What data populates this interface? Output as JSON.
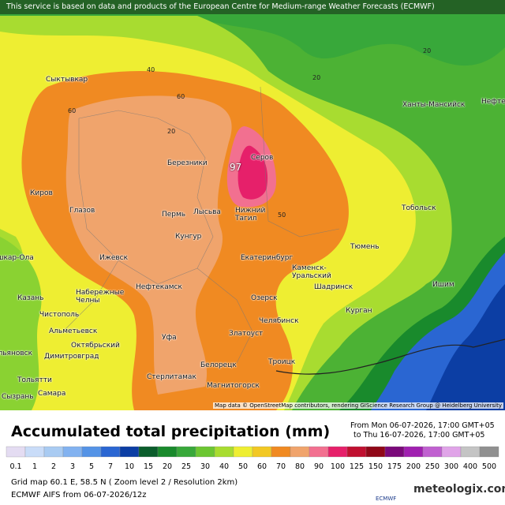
{
  "banner": "This service is based on data and products of the European Centre for Medium-range Weather Forecasts (ECMWF)",
  "map": {
    "cities": [
      "Сыктывкар",
      "Киров",
      "Глазов",
      "Березники",
      "Пермь",
      "Лысьва",
      "Кунгур",
      "Ижевск",
      "Нефтекамск",
      "Набережные Челны",
      "Казань",
      "Чистополь",
      "Альметьевск",
      "Октябрьский",
      "Йошкар-Ола",
      "Ульяновск",
      "Димитровград",
      "Тольятти",
      "Самара",
      "Сызрань",
      "Уфа",
      "Стерлитамак",
      "Белорецк",
      "Магнитогорск",
      "Златоуст",
      "Челябинск",
      "Озерск",
      "Троицк",
      "Екатеринбург",
      "Нижний Тагил",
      "Серов",
      "Каменск-Уральский",
      "Шадринск",
      "Курган",
      "Тюмень",
      "Тобольск",
      "Ишим",
      "Ханты-Мансийск",
      "Нефтеюганск"
    ],
    "contour_labels": [
      20,
      20,
      20,
      40,
      60,
      60,
      50
    ],
    "max_label": 97,
    "attribution": "Map data © OpenStreetMap contributors, rendering GIScience Research Group @ Heidelberg University"
  },
  "legend": {
    "title": "Accumulated total precipitation (mm)",
    "from": "From Mon 06-07-2026, 17:00 GMT+05",
    "to": "to Thu 16-07-2026, 17:00 GMT+05",
    "levels": [
      0.1,
      1,
      2,
      3,
      5,
      7,
      10,
      15,
      20,
      25,
      30,
      40,
      50,
      60,
      70,
      80,
      90,
      100,
      125,
      150,
      175,
      200,
      250,
      300,
      400,
      500
    ],
    "colors": [
      "#e4dcf2",
      "#c9dcf8",
      "#a9cbf2",
      "#82b2f0",
      "#5493e6",
      "#2a66d2",
      "#0c3ea4",
      "#0b5d2c",
      "#198a2c",
      "#38a83a",
      "#6cc632",
      "#a8dc30",
      "#eeee32",
      "#f2c824",
      "#f08a22",
      "#f0a46c",
      "#f27090",
      "#e6206a",
      "#c01030",
      "#900818",
      "#7a0a7a",
      "#a020b0",
      "#c060d0",
      "#e0a4e8",
      "#c4c4c4",
      "#909090"
    ]
  },
  "footer": {
    "grid": "Grid map 60.1 E, 58.5 N ( Zoom level 2 / Resolution 2km)",
    "model": "ECMWF AIFS from  06-07-2026/12z",
    "brand": "meteologix.com",
    "ecmwf": "ECMWF"
  }
}
